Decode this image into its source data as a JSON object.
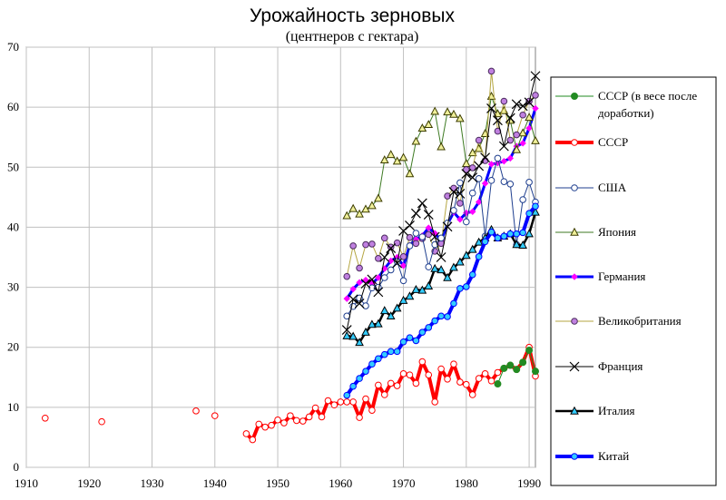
{
  "chart_data": {
    "type": "line",
    "title": "Урожайность зерновых",
    "subtitle": "(центнеров с гектара)",
    "xlabel": "",
    "ylabel": "",
    "xlim": [
      1910,
      1991
    ],
    "ylim": [
      0,
      70
    ],
    "x_ticks": [
      "1910",
      "1920",
      "1930",
      "1940",
      "1950",
      "1960",
      "1970",
      "1980",
      "1990"
    ],
    "y_ticks": [
      "0",
      "10",
      "20",
      "30",
      "40",
      "50",
      "60",
      "70"
    ],
    "grid": true,
    "legend_position": "right",
    "series": [
      {
        "name": "СССР (в весе после доработки)",
        "legend_lines": [
          "СССР (в весе после",
          "доработки)"
        ],
        "color": "#228b22",
        "width": 1,
        "marker": "dot",
        "x": [
          1985,
          1986,
          1987,
          1988,
          1989,
          1990,
          1991
        ],
        "y": [
          13.9,
          16.5,
          17.0,
          16.3,
          17.5,
          19.5,
          16.0
        ]
      },
      {
        "name": "СССР",
        "legend_lines": [
          "СССР"
        ],
        "color": "#ff0000",
        "width": 4,
        "marker": "circle",
        "marker_stroke": "#ff0000",
        "marker_fill": "#ffffff",
        "x": [
          1913,
          1922,
          1937,
          1940,
          1945,
          1946,
          1947,
          1948,
          1949,
          1950,
          1951,
          1952,
          1953,
          1954,
          1955,
          1956,
          1957,
          1958,
          1959,
          1960,
          1961,
          1962,
          1963,
          1964,
          1965,
          1966,
          1967,
          1968,
          1969,
          1970,
          1971,
          1972,
          1973,
          1974,
          1975,
          1976,
          1977,
          1978,
          1979,
          1980,
          1981,
          1982,
          1983,
          1984,
          1985,
          1986,
          1987,
          1988,
          1989,
          1990,
          1991
        ],
        "y": [
          8.2,
          7.6,
          9.4,
          8.6,
          5.6,
          4.6,
          7.2,
          6.7,
          7.0,
          7.9,
          7.4,
          8.6,
          7.8,
          7.7,
          8.4,
          9.9,
          8.4,
          11.1,
          10.4,
          10.9,
          10.9,
          10.9,
          8.3,
          11.4,
          9.5,
          13.7,
          12.1,
          14.0,
          13.6,
          15.6,
          15.4,
          14.0,
          17.6,
          15.4,
          10.9,
          16.4,
          14.7,
          17.2,
          14.2,
          13.8,
          12.1,
          14.8,
          15.6,
          14.4,
          15.8,
          16.5,
          17.0,
          16.3,
          17.5,
          20.0,
          15.2
        ]
      },
      {
        "name": "США",
        "legend_lines": [
          "США"
        ],
        "color": "#1f3f8f",
        "width": 1,
        "marker": "circle",
        "marker_stroke": "#1f3f8f",
        "marker_fill": "#ffffff",
        "x": [
          1961,
          1962,
          1963,
          1964,
          1965,
          1966,
          1967,
          1968,
          1969,
          1970,
          1971,
          1972,
          1973,
          1974,
          1975,
          1976,
          1977,
          1978,
          1979,
          1980,
          1981,
          1982,
          1983,
          1984,
          1985,
          1986,
          1987,
          1988,
          1989,
          1990,
          1991
        ],
        "y": [
          25.2,
          26.8,
          28.2,
          26.9,
          29.9,
          30.0,
          31.6,
          32.9,
          34.3,
          31.1,
          36.9,
          39.0,
          38.4,
          33.4,
          37.1,
          38.2,
          40.7,
          42.8,
          47.4,
          40.9,
          45.7,
          48.1,
          38.5,
          47.8,
          51.5,
          47.6,
          47.2,
          37.1,
          44.6,
          47.5,
          44.2
        ]
      },
      {
        "name": "Япония",
        "legend_lines": [
          "Япония"
        ],
        "color": "#3d7a22",
        "width": 1,
        "marker": "triangle",
        "marker_stroke": "#3d3d00",
        "marker_fill": "#f0f09a",
        "x": [
          1961,
          1962,
          1963,
          1964,
          1965,
          1966,
          1967,
          1968,
          1969,
          1970,
          1971,
          1972,
          1973,
          1974,
          1975,
          1976,
          1977,
          1978,
          1979,
          1980,
          1981,
          1982,
          1983,
          1984,
          1985,
          1986,
          1987,
          1988,
          1989,
          1990,
          1991
        ],
        "y": [
          41.9,
          43.1,
          42.2,
          43.0,
          43.6,
          44.8,
          51.2,
          52.1,
          51.0,
          51.6,
          48.9,
          54.3,
          56.5,
          57.1,
          59.3,
          53.4,
          59.2,
          58.8,
          58.1,
          50.6,
          52.4,
          53.1,
          55.6,
          61.8,
          58.9,
          59.4,
          57.8,
          52.9,
          55.7,
          58.3,
          54.4
        ]
      },
      {
        "name": "Германия",
        "legend_lines": [
          "Германия"
        ],
        "color": "#0000ff",
        "width": 3,
        "marker": "diamond",
        "marker_stroke": "#ff00ff",
        "marker_fill": "#ff00ff",
        "x": [
          1961,
          1962,
          1963,
          1964,
          1965,
          1966,
          1967,
          1968,
          1969,
          1970,
          1971,
          1972,
          1973,
          1974,
          1975,
          1976,
          1977,
          1978,
          1979,
          1980,
          1981,
          1982,
          1983,
          1984,
          1985,
          1986,
          1987,
          1988,
          1989,
          1990,
          1991
        ],
        "y": [
          28.1,
          29.7,
          30.8,
          31.2,
          30.6,
          31.6,
          33.1,
          34.4,
          35.0,
          33.6,
          37.0,
          38.0,
          38.6,
          39.9,
          39.0,
          37.8,
          40.5,
          42.5,
          41.3,
          42.4,
          42.6,
          44.2,
          47.3,
          50.5,
          50.7,
          51.0,
          51.5,
          53.5,
          54.0,
          56.5,
          59.8
        ]
      },
      {
        "name": "Великобритания",
        "legend_lines": [
          "Великобритания"
        ],
        "color": "#b5a642",
        "width": 1,
        "marker": "circle",
        "marker_stroke": "#4b2c5e",
        "marker_fill": "#c080e0",
        "x": [
          1961,
          1962,
          1963,
          1964,
          1965,
          1966,
          1967,
          1968,
          1969,
          1970,
          1971,
          1972,
          1973,
          1974,
          1975,
          1976,
          1977,
          1978,
          1979,
          1980,
          1981,
          1982,
          1983,
          1984,
          1985,
          1986,
          1987,
          1988,
          1989,
          1990,
          1991
        ],
        "y": [
          31.8,
          36.9,
          33.2,
          37.1,
          37.2,
          34.8,
          38.2,
          36.7,
          37.4,
          35.1,
          38.3,
          37.3,
          38.1,
          38.8,
          36.0,
          37.3,
          45.2,
          46.5,
          44.0,
          49.6,
          49.9,
          54.5,
          51.1,
          66.0,
          56.0,
          61.0,
          54.5,
          55.4,
          58.7,
          61.0,
          62.0
        ]
      },
      {
        "name": "Франция",
        "legend_lines": [
          "Франция"
        ],
        "color": "#000000",
        "width": 1,
        "marker": "x",
        "marker_stroke": "#000000",
        "marker_fill": "none",
        "x": [
          1961,
          1962,
          1963,
          1964,
          1965,
          1966,
          1967,
          1968,
          1969,
          1970,
          1971,
          1972,
          1973,
          1974,
          1975,
          1976,
          1977,
          1978,
          1979,
          1980,
          1981,
          1982,
          1983,
          1984,
          1985,
          1986,
          1987,
          1988,
          1989,
          1990,
          1991
        ],
        "y": [
          22.9,
          28.0,
          27.3,
          30.6,
          31.3,
          29.2,
          35.0,
          36.5,
          34.0,
          39.4,
          40.3,
          42.3,
          44.0,
          42.1,
          38.4,
          35.0,
          40.1,
          45.9,
          45.6,
          48.9,
          48.3,
          50.2,
          51.6,
          59.8,
          57.8,
          53.5,
          58.2,
          60.5,
          60.2,
          60.8,
          65.2
        ]
      },
      {
        "name": "Италия",
        "legend_lines": [
          "Италия"
        ],
        "color": "#000000",
        "width": 2.5,
        "marker": "triangle",
        "marker_stroke": "#000000",
        "marker_fill": "#33ccff",
        "x": [
          1961,
          1962,
          1963,
          1964,
          1965,
          1966,
          1967,
          1968,
          1969,
          1970,
          1971,
          1972,
          1973,
          1974,
          1975,
          1976,
          1977,
          1978,
          1979,
          1980,
          1981,
          1982,
          1983,
          1984,
          1985,
          1986,
          1987,
          1988,
          1989,
          1990,
          1991
        ],
        "y": [
          21.9,
          21.8,
          20.8,
          22.5,
          23.8,
          23.9,
          26.1,
          25.2,
          26.5,
          27.8,
          28.5,
          29.6,
          29.5,
          30.2,
          33.1,
          32.9,
          31.6,
          33.3,
          34.2,
          35.3,
          36.3,
          37.5,
          38.2,
          39.6,
          38.2,
          38.5,
          38.9,
          37.1,
          37.0,
          38.9,
          42.5
        ]
      },
      {
        "name": "Китай",
        "legend_lines": [
          "Китай"
        ],
        "color": "#0000ff",
        "width": 4,
        "marker": "circle",
        "marker_stroke": "#0000ff",
        "marker_fill": "#33ccff",
        "x": [
          1961,
          1962,
          1963,
          1964,
          1965,
          1966,
          1967,
          1968,
          1969,
          1970,
          1971,
          1972,
          1973,
          1974,
          1975,
          1976,
          1977,
          1978,
          1979,
          1980,
          1981,
          1982,
          1983,
          1984,
          1985,
          1986,
          1987,
          1988,
          1989,
          1990,
          1991
        ],
        "y": [
          12.0,
          13.5,
          14.8,
          16.0,
          17.2,
          18.1,
          18.8,
          19.3,
          19.3,
          20.9,
          21.6,
          21.1,
          22.5,
          23.3,
          24.4,
          25.2,
          25.1,
          27.3,
          29.8,
          30.1,
          32.1,
          35.1,
          37.6,
          39.2,
          38.2,
          38.5,
          38.9,
          38.9,
          39.1,
          42.3,
          43.5
        ]
      }
    ]
  }
}
